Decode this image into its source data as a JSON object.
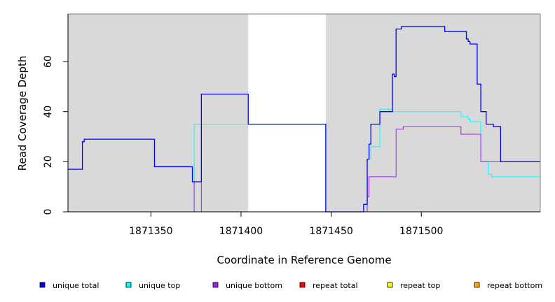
{
  "chart_data": {
    "type": "line",
    "xlabel": "Coordinate in Reference Genome",
    "ylabel": "Read Coverage Depth",
    "xlim": [
      1871304,
      1871566
    ],
    "ylim": [
      0,
      79
    ],
    "x_ticks": [
      1871350,
      1871400,
      1871450,
      1871500
    ],
    "y_ticks": [
      0,
      20,
      40,
      60
    ],
    "shaded_regions": [
      [
        1871304,
        1871404
      ],
      [
        1871447,
        1871566
      ]
    ],
    "background_color": "#d9d9d9",
    "grid": false,
    "legend_position": "bottom",
    "series": [
      {
        "name": "unique total",
        "color": "#0000ff",
        "x": [
          1871304,
          1871312,
          1871313,
          1871350,
          1871352,
          1871373,
          1871378,
          1871404,
          1871447,
          1871468,
          1871470,
          1871471,
          1871472,
          1871477,
          1871484,
          1871485,
          1871486,
          1871489,
          1871509,
          1871513,
          1871525,
          1871526,
          1871527,
          1871531,
          1871533,
          1871536,
          1871540,
          1871544,
          1871566
        ],
        "y": [
          17,
          28,
          29,
          29,
          18,
          12,
          47,
          35,
          0,
          3,
          21,
          27,
          35,
          40,
          55,
          54,
          73,
          74,
          74,
          72,
          69,
          68,
          67,
          51,
          40,
          35,
          34,
          20,
          20
        ]
      },
      {
        "name": "unique top",
        "color": "#00ffff",
        "x": [
          1871304,
          1871373,
          1871374,
          1871404,
          1871447,
          1871468,
          1871470,
          1871472,
          1871477,
          1871484,
          1871490,
          1871509,
          1871522,
          1871526,
          1871527,
          1871533,
          1871537,
          1871539,
          1871566
        ],
        "y": [
          0,
          0,
          35,
          35,
          0,
          3,
          21,
          26,
          41,
          40,
          40,
          40,
          38,
          37,
          36,
          20,
          15,
          14,
          0
        ]
      },
      {
        "name": "unique bottom",
        "color": "#a020f0",
        "x": [
          1871304,
          1871374,
          1871378,
          1871390,
          1871468,
          1871469,
          1871470,
          1871471,
          1871476,
          1871485,
          1871486,
          1871490,
          1871509,
          1871513,
          1871522,
          1871531,
          1871533,
          1871566
        ],
        "y": [
          0,
          12,
          0,
          0,
          0,
          0,
          6,
          14,
          14,
          14,
          33,
          34,
          34,
          34,
          31,
          31,
          20,
          20
        ]
      },
      {
        "name": "repeat total",
        "color": "#ff0000",
        "x": [
          1871304,
          1871566
        ],
        "y": [
          0,
          0
        ]
      },
      {
        "name": "repeat top",
        "color": "#ffff00",
        "x": [
          1871304,
          1871566
        ],
        "y": [
          0,
          0
        ]
      },
      {
        "name": "repeat bottom",
        "color": "#ffa500",
        "x": [
          1871304,
          1871566
        ],
        "y": [
          0,
          0
        ]
      }
    ]
  }
}
